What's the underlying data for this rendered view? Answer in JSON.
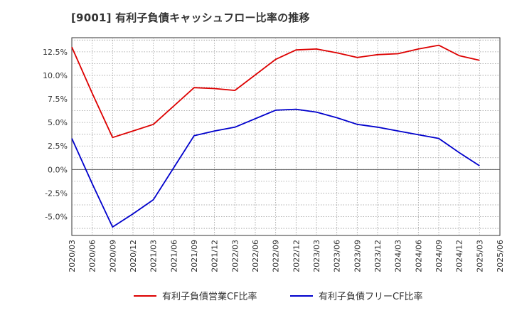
{
  "chart_data": {
    "type": "line",
    "title": "[9001]  有利子負債キャッシュフロー比率の推移",
    "x": [
      "2020/03",
      "2020/06",
      "2020/09",
      "2020/12",
      "2021/03",
      "2021/06",
      "2021/09",
      "2021/12",
      "2022/03",
      "2022/06",
      "2022/09",
      "2022/12",
      "2023/03",
      "2023/06",
      "2023/09",
      "2023/12",
      "2024/03",
      "2024/06",
      "2024/09",
      "2024/12",
      "2025/03",
      "2025/06"
    ],
    "y_ticks": [
      "-5.0%",
      "-2.5%",
      "0.0%",
      "2.5%",
      "5.0%",
      "7.5%",
      "10.0%",
      "12.5%"
    ],
    "y_tick_values": [
      -5.0,
      -2.5,
      0.0,
      2.5,
      5.0,
      7.5,
      10.0,
      12.5
    ],
    "ylim": [
      -7.0,
      14.0
    ],
    "unit": "%",
    "grid": true,
    "legend_position": "bottom",
    "series": [
      {
        "name": "有利子負債営業CF比率",
        "color": "#dd0000",
        "values": [
          13.0,
          8.1,
          3.4,
          4.1,
          4.8,
          null,
          8.7,
          8.6,
          8.4,
          null,
          11.7,
          12.7,
          12.8,
          12.4,
          11.9,
          12.2,
          12.3,
          12.8,
          13.2,
          12.1,
          11.6,
          null
        ]
      },
      {
        "name": "有利子負債フリーCF比率",
        "color": "#0000cc",
        "values": [
          3.3,
          -1.5,
          -6.1,
          -4.7,
          -3.2,
          null,
          3.6,
          4.1,
          4.5,
          null,
          6.3,
          6.4,
          6.1,
          5.5,
          4.8,
          4.5,
          4.1,
          3.7,
          3.3,
          1.8,
          0.4,
          null
        ]
      }
    ]
  }
}
